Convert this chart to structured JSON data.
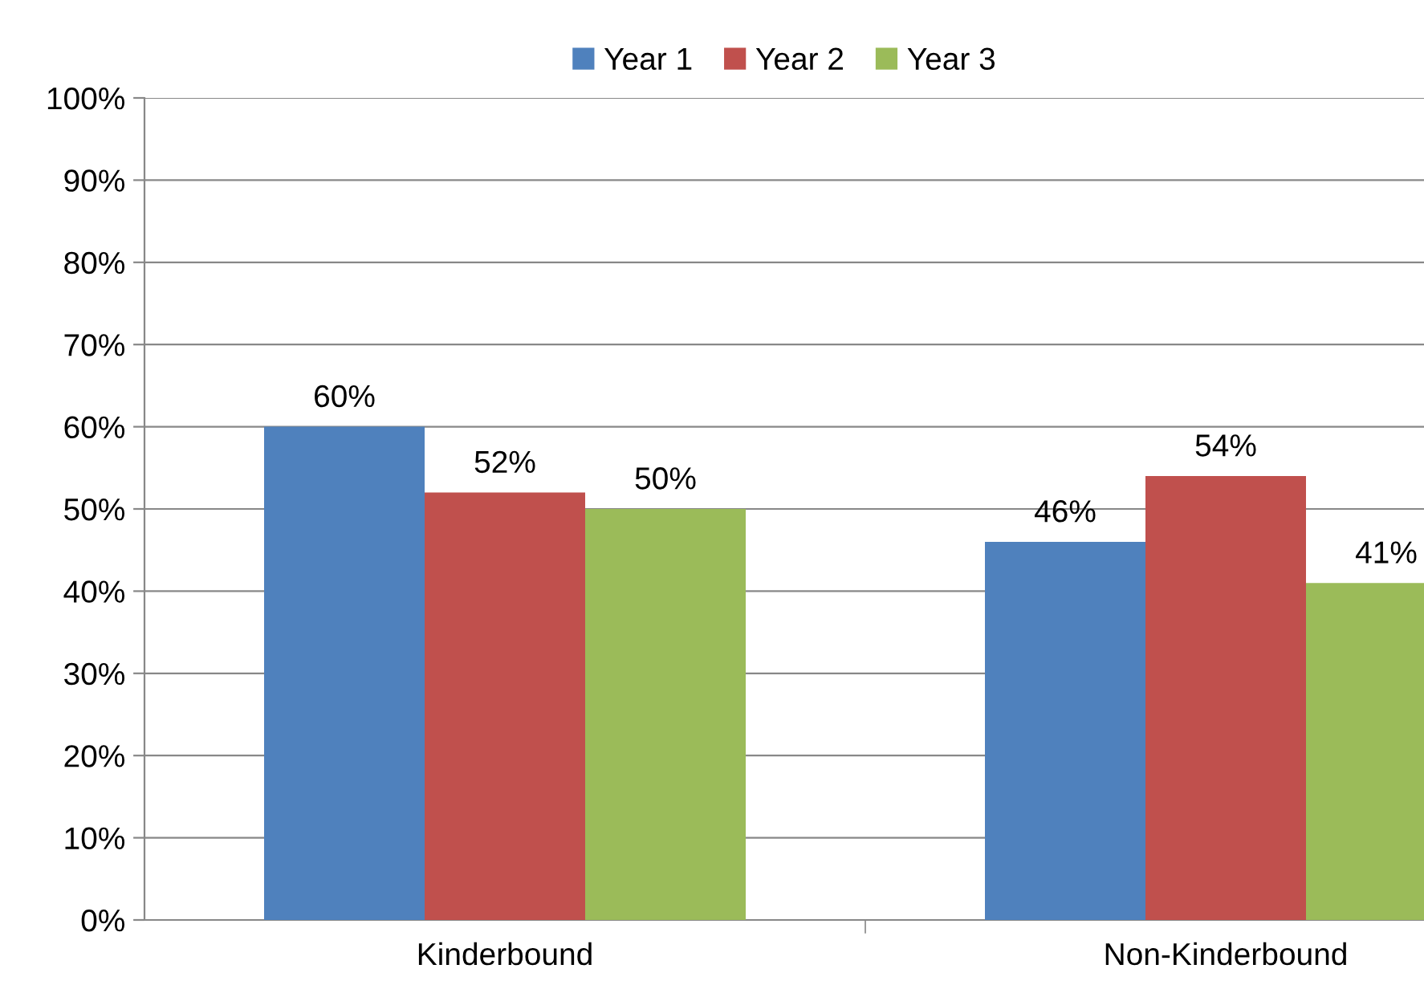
{
  "chart_data": {
    "type": "bar",
    "categories": [
      "Kinderbound",
      "Non-Kinderbound"
    ],
    "series": [
      {
        "name": "Year 1",
        "color": "#4f81bd",
        "values": [
          60,
          46
        ],
        "value_labels": [
          "60%",
          "46%"
        ]
      },
      {
        "name": "Year 2",
        "color": "#c0504d",
        "values": [
          52,
          54
        ],
        "value_labels": [
          "52%",
          "54%"
        ]
      },
      {
        "name": "Year 3",
        "color": "#9bbb59",
        "values": [
          50,
          41
        ],
        "value_labels": [
          "50%",
          "41%"
        ]
      }
    ],
    "ylim": [
      0,
      100
    ],
    "yticks": [
      {
        "value": 0,
        "label": "0%"
      },
      {
        "value": 10,
        "label": "10%"
      },
      {
        "value": 20,
        "label": "20%"
      },
      {
        "value": 30,
        "label": "30%"
      },
      {
        "value": 40,
        "label": "40%"
      },
      {
        "value": 50,
        "label": "50%"
      },
      {
        "value": 60,
        "label": "60%"
      },
      {
        "value": 70,
        "label": "70%"
      },
      {
        "value": 80,
        "label": "80%"
      },
      {
        "value": 90,
        "label": "90%"
      },
      {
        "value": 100,
        "label": "100%"
      }
    ],
    "grid": "y",
    "legend": "top"
  }
}
